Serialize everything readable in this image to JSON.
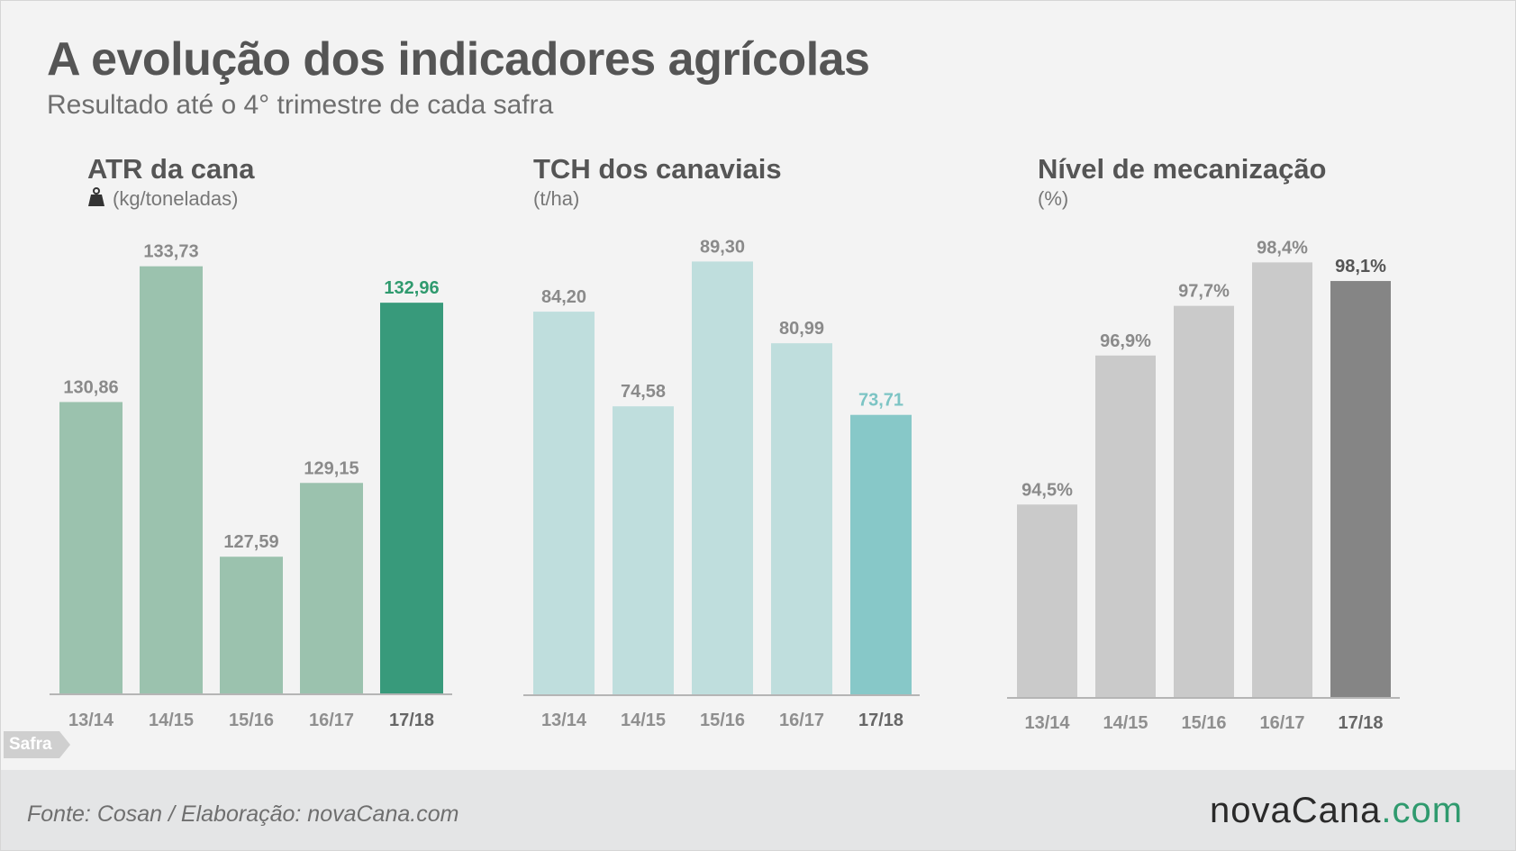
{
  "header": {
    "title": "A evolução dos indicadores agrícolas",
    "subtitle": "Resultado até o 4° trimestre de cada safra"
  },
  "chart_data": [
    {
      "type": "bar",
      "title": "ATR da cana",
      "unit": "(kg/toneladas)",
      "unit_icon": "weight-icon",
      "categories": [
        "13/14",
        "14/15",
        "15/16",
        "16/17",
        "17/18"
      ],
      "values": [
        130.86,
        133.73,
        127.59,
        129.15,
        132.96
      ],
      "value_labels": [
        "130,86",
        "133,73",
        "127,59",
        "129,15",
        "132,96"
      ],
      "colors": [
        "#9bc2ae",
        "#9bc2ae",
        "#9bc2ae",
        "#9bc2ae",
        "#389a7b"
      ],
      "highlight_label_color": "#2f9a6e",
      "ylim": [
        124.7,
        134.6
      ],
      "xlabel": "Safra"
    },
    {
      "type": "bar",
      "title": "TCH dos canaviais",
      "unit": "(t/ha)",
      "categories": [
        "13/14",
        "14/15",
        "15/16",
        "16/17",
        "17/18"
      ],
      "values": [
        84.2,
        74.58,
        89.3,
        80.99,
        73.71
      ],
      "value_labels": [
        "84,20",
        "74,58",
        "89,30",
        "80,99",
        "73,71"
      ],
      "colors": [
        "#bfdedd",
        "#bfdedd",
        "#bfdedd",
        "#bfdedd",
        "#87c8c8"
      ],
      "highlight_label_color": "#7cc4c4",
      "ylim": [
        45.3,
        93.0
      ],
      "xlabel": "Safra"
    },
    {
      "type": "bar",
      "title": "Nível de mecanização",
      "unit": "(%)",
      "categories": [
        "13/14",
        "14/15",
        "15/16",
        "16/17",
        "17/18"
      ],
      "values": [
        94.5,
        96.9,
        97.7,
        98.4,
        98.1
      ],
      "value_labels": [
        "94,5%",
        "96,9%",
        "97,7%",
        "98,4%",
        "98,1%"
      ],
      "colors": [
        "#cacaca",
        "#cacaca",
        "#cacaca",
        "#cacaca",
        "#858585"
      ],
      "highlight_label_color": "#555555",
      "ylim": [
        91.4,
        99.0
      ],
      "xlabel": "Safra"
    }
  ],
  "axis_tag": "Safra",
  "footer": {
    "source": "Fonte: Cosan / Elaboração: novaCana.com",
    "brand_main": "novaCana",
    "brand_suffix": ".com"
  }
}
